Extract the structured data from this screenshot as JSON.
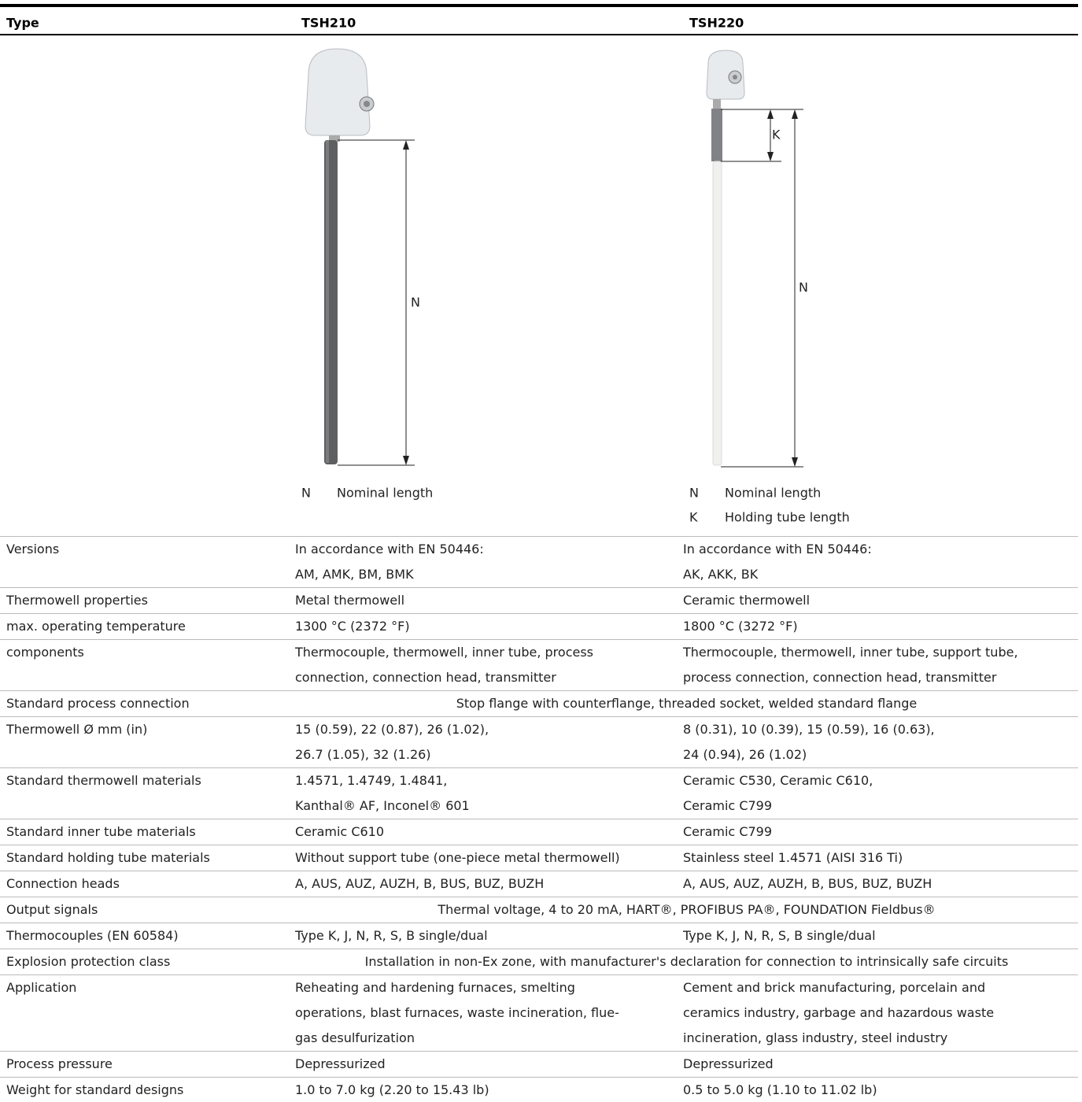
{
  "header": {
    "type_label": "Type",
    "columns": [
      "TSH210",
      "TSH220"
    ]
  },
  "figures": [
    {
      "dimensions": [
        "N"
      ],
      "legend": [
        {
          "symbol": "N",
          "text": "Nominal length"
        }
      ]
    },
    {
      "dimensions": [
        "K",
        "N"
      ],
      "legend": [
        {
          "symbol": "N",
          "text": "Nominal length"
        },
        {
          "symbol": "K",
          "text": "Holding tube length"
        }
      ]
    }
  ],
  "rows": [
    {
      "label": "Versions",
      "values": [
        [
          "In accordance with EN 50446:",
          "AM, AMK, BM, BMK"
        ],
        [
          "In accordance with EN 50446:",
          "AK, AKK, BK"
        ]
      ]
    },
    {
      "label": "Thermowell properties",
      "values": [
        [
          "Metal thermowell"
        ],
        [
          "Ceramic thermowell"
        ]
      ]
    },
    {
      "label": "max. operating temperature",
      "values": [
        [
          "1300 °C (2372 °F)"
        ],
        [
          "1800 °C (3272 °F)"
        ]
      ]
    },
    {
      "label": "components",
      "values": [
        [
          "Thermocouple, thermowell, inner tube, process",
          "connection, connection head, transmitter"
        ],
        [
          "Thermocouple, thermowell, inner tube, support tube,",
          "process connection, connection head, transmitter"
        ]
      ]
    },
    {
      "label": "Standard process connection",
      "value": "Stop flange with counterflange, threaded socket, welded standard flange"
    },
    {
      "label": "Thermowell Ø mm (in)",
      "values": [
        [
          "15 (0.59), 22 (0.87), 26 (1.02),",
          "26.7 (1.05), 32 (1.26)"
        ],
        [
          "8 (0.31), 10 (0.39), 15 (0.59), 16 (0.63),",
          "24 (0.94), 26 (1.02)"
        ]
      ]
    },
    {
      "label": "Standard thermowell materials",
      "values": [
        [
          "1.4571, 1.4749, 1.4841,",
          "Kanthal® AF, Inconel® 601"
        ],
        [
          "Ceramic C530, Ceramic C610,",
          "Ceramic C799"
        ]
      ]
    },
    {
      "label": "Standard inner tube materials",
      "values": [
        [
          "Ceramic C610"
        ],
        [
          "Ceramic C799"
        ]
      ]
    },
    {
      "label": "Standard holding tube materials",
      "values": [
        [
          "Without support tube (one-piece metal thermowell)"
        ],
        [
          "Stainless steel 1.4571 (AISI 316 Ti)"
        ]
      ]
    },
    {
      "label": "Connection heads",
      "values": [
        [
          "A, AUS, AUZ, AUZH, B, BUS, BUZ, BUZH"
        ],
        [
          "A, AUS, AUZ, AUZH, B, BUS, BUZ, BUZH"
        ]
      ]
    },
    {
      "label": "Output signals",
      "value": "Thermal voltage, 4 to 20 mA, HART®, PROFIBUS PA®, FOUNDATION Fieldbus®"
    },
    {
      "label": "Thermocouples (EN 60584)",
      "values": [
        [
          "Type K, J, N, R, S, B single/dual"
        ],
        [
          "Type K, J, N, R, S, B single/dual"
        ]
      ]
    },
    {
      "label": "Explosion protection class",
      "value": "Installation in non-Ex zone, with manufacturer's declaration for connection to intrinsically safe circuits"
    },
    {
      "label": "Application",
      "values": [
        [
          "Reheating and hardening furnaces, smelting",
          "operations, blast furnaces, waste incineration, flue-",
          "gas desulfurization"
        ],
        [
          "Cement and brick manufacturing, porcelain and",
          "ceramics industry, garbage and hazardous waste",
          "incineration, glass industry, steel industry"
        ]
      ]
    },
    {
      "label": "Process pressure",
      "values": [
        [
          "Depressurized"
        ],
        [
          "Depressurized"
        ]
      ]
    },
    {
      "label": "Weight for standard designs",
      "values": [
        [
          "1.0 to 7.0 kg (2.20 to 15.43 lb)"
        ],
        [
          "0.5 to 5.0 kg (1.10 to 11.02 lb)"
        ]
      ]
    }
  ]
}
